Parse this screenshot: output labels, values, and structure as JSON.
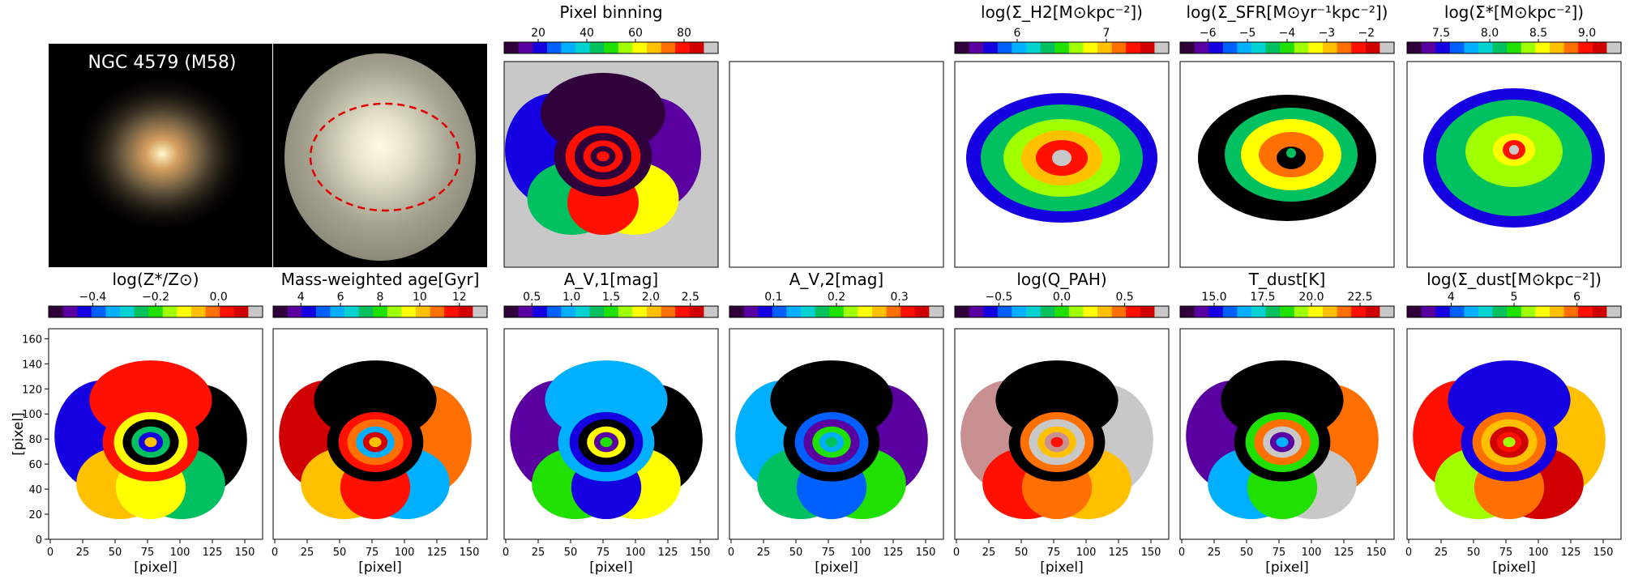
{
  "galaxy_name": "NGC 4579 (M58)",
  "axis_label": "[pixel]",
  "x_ticks": [
    "0",
    "25",
    "50",
    "75",
    "100",
    "125",
    "150"
  ],
  "y_ticks": [
    "0",
    "20",
    "40",
    "60",
    "80",
    "100",
    "120",
    "140",
    "160"
  ],
  "colormap": [
    "#30003a",
    "#5a00a0",
    "#1400e0",
    "#0060ff",
    "#00b0ff",
    "#00d2d2",
    "#00c060",
    "#20e000",
    "#a0ff00",
    "#ffff00",
    "#ffc000",
    "#ff7000",
    "#ff1000",
    "#d00000",
    "#c8c8c8"
  ],
  "top_row": [
    {
      "kind": "photo"
    },
    {
      "kind": "photo_ellipse"
    },
    {
      "kind": "map",
      "title": "Pixel binning",
      "ticks": [
        "20",
        "40",
        "60",
        "80"
      ]
    },
    {
      "kind": "empty"
    },
    {
      "kind": "map",
      "title": "log(Σ_H2[M⊙kpc⁻²])",
      "ticks": [
        "6",
        "7"
      ]
    },
    {
      "kind": "map",
      "title": "log(Σ_SFR[M⊙yr⁻¹kpc⁻²])",
      "ticks": [
        "−6",
        "−5",
        "−4",
        "−3",
        "−2"
      ]
    },
    {
      "kind": "map",
      "title": "log(Σ*[M⊙kpc⁻²])",
      "ticks": [
        "7.5",
        "8.0",
        "8.5",
        "9.0"
      ]
    }
  ],
  "bottom_row": [
    {
      "title": "log(Z*/Z⊙)",
      "ticks": [
        "−0.4",
        "−0.2",
        "0.0"
      ]
    },
    {
      "title": "Mass-weighted age[Gyr]",
      "ticks": [
        "4",
        "6",
        "8",
        "10",
        "12"
      ]
    },
    {
      "title": "A_V,1[mag]",
      "ticks": [
        "0.5",
        "1.0",
        "1.5",
        "2.0",
        "2.5"
      ]
    },
    {
      "title": "A_V,2[mag]",
      "ticks": [
        "0.1",
        "0.2",
        "0.3"
      ]
    },
    {
      "title": "log(Q_PAH)",
      "ticks": [
        "−0.5",
        "0.0",
        "0.5"
      ]
    },
    {
      "title": "T_dust[K]",
      "ticks": [
        "15.0",
        "17.5",
        "20.0",
        "22.5"
      ]
    },
    {
      "title": "log(Σ_dust[M⊙kpc⁻²])",
      "ticks": [
        "4",
        "5",
        "6"
      ]
    }
  ]
}
